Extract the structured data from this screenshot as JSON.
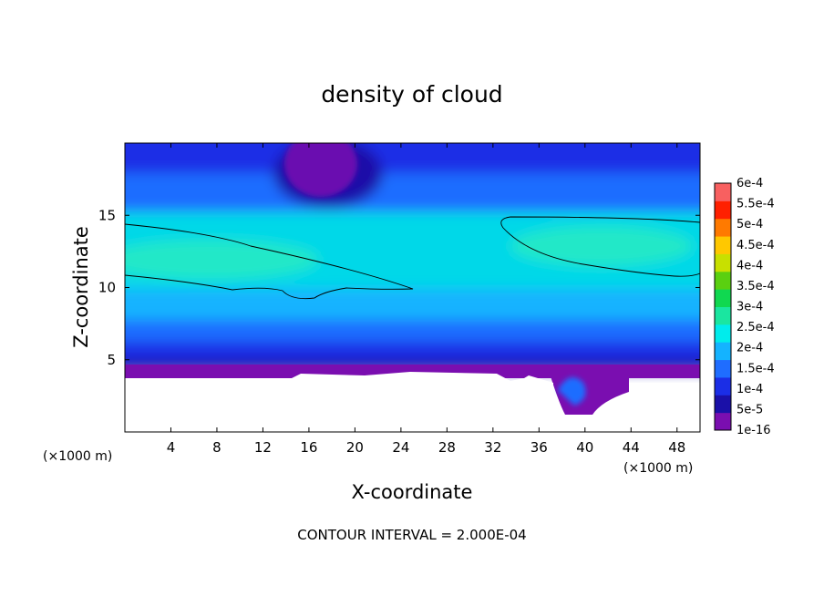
{
  "chart_data": {
    "type": "heatmap",
    "title": "density of cloud",
    "xlabel": "X-coordinate",
    "ylabel": "Z-coordinate",
    "x_unit": "(×1000 m)",
    "y_unit": "(×1000 m)",
    "xlim": [
      0,
      50
    ],
    "ylim": [
      0,
      20
    ],
    "x_ticks": [
      4,
      8,
      12,
      16,
      20,
      24,
      28,
      32,
      36,
      40,
      44,
      48
    ],
    "y_ticks": [
      5,
      10,
      15
    ],
    "footer": "CONTOUR INTERVAL = 2.000E-04",
    "colorbar": {
      "labels": [
        "1e-16",
        "5e-5",
        "1e-4",
        "1.5e-4",
        "2e-4",
        "2.5e-4",
        "3e-4",
        "3.5e-4",
        "4e-4",
        "4.5e-4",
        "5e-4",
        "5.5e-4",
        "6e-4"
      ],
      "colors": [
        "#7a0eb0",
        "#1a10a8",
        "#1b2ee6",
        "#1f6dff",
        "#14b3ff",
        "#00ecec",
        "#1ae6a0",
        "#10d850",
        "#5ad010",
        "#c8e000",
        "#ffc800",
        "#ff7a00",
        "#ff2000",
        "#f86060"
      ]
    },
    "bands": [
      {
        "z": [
          0,
          3.6
        ],
        "value": "none"
      },
      {
        "z": [
          3.6,
          4.2
        ],
        "value": "1e-16"
      },
      {
        "z": [
          4.2,
          5.0
        ],
        "value": "5e-5"
      },
      {
        "z": [
          5.0,
          6.0
        ],
        "value": "1e-4"
      },
      {
        "z": [
          6.0,
          8.5
        ],
        "value": "1.5e-4"
      },
      {
        "z": [
          8.5,
          10.5
        ],
        "value": "2e-4"
      },
      {
        "z": [
          10.5,
          14.5
        ],
        "value": "2.5e-4"
      },
      {
        "z": [
          14.5,
          17.0
        ],
        "value": "1.5e-4"
      },
      {
        "z": [
          17.0,
          20.0
        ],
        "value": "1e-4"
      }
    ],
    "features": [
      {
        "type": "minimum",
        "x": [
          13.5,
          20.5
        ],
        "z": [
          15.5,
          20
        ],
        "value": "1e-16"
      },
      {
        "type": "minimum",
        "x": [
          37.5,
          42
        ],
        "z": [
          1.2,
          4
        ],
        "value": "1e-16"
      },
      {
        "type": "contour",
        "level": "2e-4",
        "x": [
          0,
          25
        ],
        "z": [
          9.2,
          14.2
        ]
      },
      {
        "type": "contour",
        "level": "2e-4",
        "x": [
          32.5,
          50
        ],
        "z": [
          10.7,
          14.8
        ]
      }
    ]
  }
}
